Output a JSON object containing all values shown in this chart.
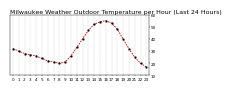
{
  "title": "Milwaukee Weather Outdoor Temperature per Hour (Last 24 Hours)",
  "hours": [
    0,
    1,
    2,
    3,
    4,
    5,
    6,
    7,
    8,
    9,
    10,
    11,
    12,
    13,
    14,
    15,
    16,
    17,
    18,
    19,
    20,
    21,
    22,
    23
  ],
  "temperatures": [
    32,
    30,
    28,
    27,
    26,
    24,
    22,
    21,
    20,
    21,
    26,
    33,
    40,
    47,
    52,
    54,
    55,
    53,
    48,
    40,
    32,
    25,
    20,
    17
  ],
  "line_color": "#cc0000",
  "marker_color": "#000000",
  "bg_color": "#ffffff",
  "ylim": [
    10,
    60
  ],
  "yticks": [
    10,
    20,
    30,
    40,
    50,
    60
  ],
  "title_fontsize": 4.5,
  "tick_fontsize": 3.0
}
